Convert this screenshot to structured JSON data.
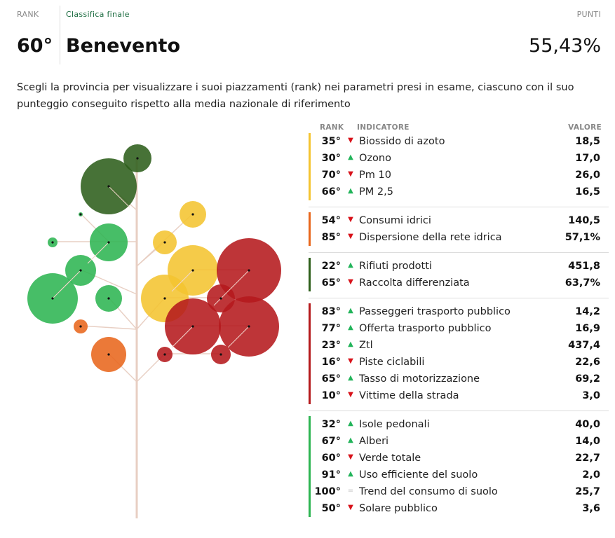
{
  "header": {
    "rank_label": "RANK",
    "classifica_label": "Classifica finale",
    "punti_label": "PUNTI",
    "rank_value": "60°",
    "city": "Benevento",
    "score": "55,43%"
  },
  "description": "Scegli la provincia per visualizzare i suoi piazzamenti (rank) nei parametri presi in esame, ciascuno con il suo punteggio conseguito rispetto alla media nazionale di riferimento",
  "table": {
    "col_rank": "RANK",
    "col_indicator": "INDICATORE",
    "col_value": "VALORE",
    "groups": [
      {
        "color": "#f4c430",
        "rows": [
          {
            "rank": "35°",
            "trend": "down",
            "name": "Biossido di azoto",
            "value": "18,5"
          },
          {
            "rank": "30°",
            "trend": "up",
            "name": "Ozono",
            "value": "17,0"
          },
          {
            "rank": "70°",
            "trend": "down",
            "name": "Pm 10",
            "value": "26,0"
          },
          {
            "rank": "66°",
            "trend": "up",
            "name": "PM 2,5",
            "value": "16,5"
          }
        ]
      },
      {
        "color": "#e8661c",
        "rows": [
          {
            "rank": "54°",
            "trend": "down",
            "name": "Consumi idrici",
            "value": "140,5"
          },
          {
            "rank": "85°",
            "trend": "down",
            "name": "Dispersione della rete idrica",
            "value": "57,1%"
          }
        ]
      },
      {
        "color": "#2e5f1b",
        "rows": [
          {
            "rank": "22°",
            "trend": "up",
            "name": "Rifiuti prodotti",
            "value": "451,8"
          },
          {
            "rank": "65°",
            "trend": "down",
            "name": "Raccolta differenziata",
            "value": "63,7%"
          }
        ]
      },
      {
        "color": "#b5191c",
        "rows": [
          {
            "rank": "83°",
            "trend": "up",
            "name": "Passeggeri trasporto pubblico",
            "value": "14,2"
          },
          {
            "rank": "77°",
            "trend": "up",
            "name": "Offerta trasporto pubblico",
            "value": "16,9"
          },
          {
            "rank": "23°",
            "trend": "up",
            "name": "Ztl",
            "value": "437,4"
          },
          {
            "rank": "16°",
            "trend": "down",
            "name": "Piste ciclabili",
            "value": "22,6"
          },
          {
            "rank": "65°",
            "trend": "up",
            "name": "Tasso di motorizzazione",
            "value": "69,2"
          },
          {
            "rank": "10°",
            "trend": "down",
            "name": "Vittime della strada",
            "value": "3,0"
          }
        ]
      },
      {
        "color": "#2db552",
        "rows": [
          {
            "rank": "32°",
            "trend": "up",
            "name": "Isole pedonali",
            "value": "40,0"
          },
          {
            "rank": "67°",
            "trend": "up",
            "name": "Alberi",
            "value": "14,0"
          },
          {
            "rank": "60°",
            "trend": "down",
            "name": "Verde totale",
            "value": "22,7"
          },
          {
            "rank": "91°",
            "trend": "up",
            "name": "Uso efficiente del suolo",
            "value": "2,0"
          },
          {
            "rank": "100°",
            "trend": "eq",
            "name": "Trend del consumo di suolo",
            "value": "25,7"
          },
          {
            "rank": "50°",
            "trend": "down",
            "name": "Solare pubblico",
            "value": "3,6"
          }
        ]
      }
    ]
  },
  "icons": {
    "up": "triangle-up-icon",
    "down": "triangle-down-icon",
    "eq": "equal-icon"
  },
  "colors": {
    "air": "#f4c430",
    "water": "#e8661c",
    "waste": "#2e5f1b",
    "mobility": "#b5191c",
    "environment": "#2db552"
  }
}
